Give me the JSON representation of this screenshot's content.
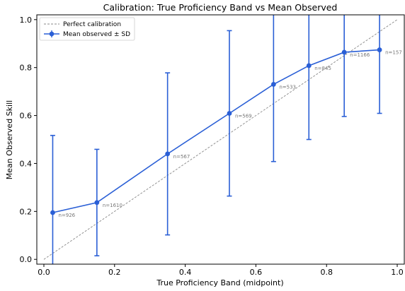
{
  "chart_data": {
    "type": "line",
    "title": "Calibration: True Proficiency Band vs Mean Observed",
    "xlabel": "True Proficiency Band (midpoint)",
    "ylabel": "Mean Observed Skill",
    "xlim": [
      -0.02,
      1.02
    ],
    "ylim": [
      -0.02,
      1.02
    ],
    "xticks": [
      "0.0",
      "0.2",
      "0.4",
      "0.6",
      "0.8",
      "1.0"
    ],
    "yticks": [
      "0.0",
      "0.2",
      "0.4",
      "0.6",
      "0.8",
      "1.0"
    ],
    "grid": false,
    "legend_position": "top-left",
    "legend": [
      {
        "label": "Perfect calibration",
        "style": "dashed-line"
      },
      {
        "label": "Mean observed ± SD",
        "style": "line-marker-errorbar"
      }
    ],
    "series": [
      {
        "name": "Mean observed ± SD",
        "color": "#2a5fd6",
        "points": [
          {
            "x": 0.025,
            "y": 0.195,
            "sd": 0.322,
            "label": "n=926"
          },
          {
            "x": 0.15,
            "y": 0.237,
            "sd": 0.222,
            "label": "n=1610"
          },
          {
            "x": 0.35,
            "y": 0.44,
            "sd": 0.338,
            "label": "n=567"
          },
          {
            "x": 0.525,
            "y": 0.609,
            "sd": 0.345,
            "label": "n=569"
          },
          {
            "x": 0.65,
            "y": 0.73,
            "sd": 0.322,
            "label": "n=533"
          },
          {
            "x": 0.75,
            "y": 0.808,
            "sd": 0.308,
            "label": "n=845"
          },
          {
            "x": 0.85,
            "y": 0.864,
            "sd": 0.268,
            "label": "n=1166"
          },
          {
            "x": 0.95,
            "y": 0.874,
            "sd": 0.265,
            "label": "n=157"
          }
        ]
      },
      {
        "name": "Perfect calibration",
        "color": "#888888",
        "x": [
          0.0,
          1.0
        ],
        "y": [
          0.0,
          1.0
        ]
      }
    ]
  }
}
